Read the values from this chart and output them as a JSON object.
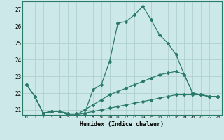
{
  "xlabel": "Humidex (Indice chaleur)",
  "ylabel": "",
  "xlim": [
    -0.5,
    23.5
  ],
  "ylim": [
    20.7,
    27.5
  ],
  "yticks": [
    21,
    22,
    23,
    24,
    25,
    26,
    27
  ],
  "xticks": [
    0,
    1,
    2,
    3,
    4,
    5,
    6,
    7,
    8,
    9,
    10,
    11,
    12,
    13,
    14,
    15,
    16,
    17,
    18,
    19,
    20,
    21,
    22,
    23
  ],
  "bg_color": "#cce8e8",
  "grid_color": "#b0d0d0",
  "line_color": "#2a7a6a",
  "lines": [
    {
      "x": [
        0,
        1,
        2,
        3,
        4,
        5,
        6,
        7,
        8,
        9,
        10,
        11,
        12,
        13,
        14,
        15,
        16,
        17,
        18,
        19,
        20,
        21,
        22,
        23
      ],
      "y": [
        22.5,
        21.8,
        20.8,
        20.9,
        20.9,
        20.8,
        20.8,
        20.8,
        22.2,
        22.5,
        23.9,
        26.2,
        26.3,
        26.7,
        27.2,
        26.4,
        25.5,
        25.0,
        24.3,
        23.1,
        22.0,
        21.9,
        21.8,
        21.8
      ]
    },
    {
      "x": [
        0,
        1,
        2,
        3,
        4,
        5,
        6,
        7,
        8,
        9,
        10,
        11,
        12,
        13,
        14,
        15,
        16,
        17,
        18,
        19,
        20,
        21,
        22,
        23
      ],
      "y": [
        22.5,
        21.8,
        20.8,
        20.9,
        20.9,
        20.7,
        20.7,
        21.0,
        21.3,
        21.6,
        21.9,
        22.1,
        22.3,
        22.5,
        22.7,
        22.9,
        23.1,
        23.2,
        23.3,
        23.1,
        22.0,
        21.9,
        21.8,
        21.8
      ]
    },
    {
      "x": [
        0,
        1,
        2,
        3,
        4,
        5,
        6,
        7,
        8,
        9,
        10,
        11,
        12,
        13,
        14,
        15,
        16,
        17,
        18,
        19,
        20,
        21,
        22,
        23
      ],
      "y": [
        22.5,
        21.8,
        20.8,
        20.9,
        20.9,
        20.7,
        20.7,
        20.8,
        20.9,
        21.0,
        21.1,
        21.2,
        21.3,
        21.4,
        21.5,
        21.6,
        21.7,
        21.8,
        21.9,
        21.9,
        21.9,
        21.9,
        21.8,
        21.8
      ]
    }
  ]
}
